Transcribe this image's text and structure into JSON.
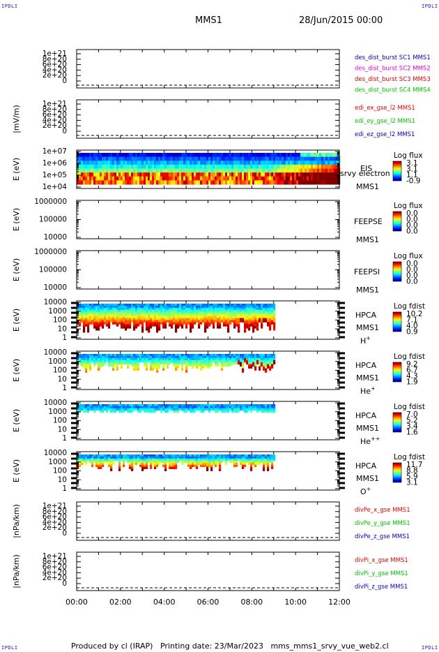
{
  "corner_logo": "IPDLI",
  "header": {
    "title": "MMS1",
    "date": "28/Jun/2015 00:00"
  },
  "footer": {
    "producer": "Produced by cl (IRAP)",
    "printing": "Printing date: 23/Mar/2023",
    "script": "mms_mms1_srvy_vue_web2.cl"
  },
  "time_axis": [
    "00:00",
    "02:00",
    "04:00",
    "06:00",
    "08:00",
    "10:00",
    "12:00"
  ],
  "colors": {
    "red": "#e00000",
    "magenta": "#e000e0",
    "green": "#00c000",
    "blue": "#0000c0",
    "black": "#000000"
  },
  "chart_data": [
    {
      "type": "line",
      "ylabel": "",
      "yticks": [
        "1e+21",
        "8e+20",
        "6e+20",
        "4e+20",
        "2e+20",
        "0"
      ],
      "legend": [
        {
          "text": "des_dist_burst SC1 MMS1",
          "color": "blue"
        },
        {
          "text": "des_dist_burst SC2 MMS2",
          "color": "magenta"
        },
        {
          "text": "des_dist_burst SC3 MMS3",
          "color": "red"
        },
        {
          "text": "des_dist_burst SC4 MMS4",
          "color": "green"
        }
      ]
    },
    {
      "type": "line",
      "ylabel": "|mV/m)",
      "yticks": [
        "1e+21",
        "8e+20",
        "6e+20",
        "4e+20",
        "2e+20",
        "0"
      ],
      "legend": [
        {
          "text": "edi_ex_gse_l2 MMS1",
          "color": "red"
        },
        {
          "text": "edi_ey_gse_l2 MMS1",
          "color": "green"
        },
        {
          "text": "edi_ez_gse_l2 MMS1",
          "color": "blue"
        }
      ]
    },
    {
      "type": "heatmap",
      "ylabel": "E (eV)",
      "log": true,
      "yticks": [
        "1e+07",
        "1e+06",
        "1e+05",
        "1e+04"
      ],
      "labels": [
        "EIS",
        "MMS1"
      ],
      "overlay": "srvy electron to",
      "cbar": {
        "title": "Log flux",
        "values": [
          "3.1",
          "3.1",
          "1.1",
          "-0.9"
        ]
      },
      "hours_end": 12
    },
    {
      "type": "heatmap",
      "ylabel": "E (eV)",
      "log": true,
      "yticks": [
        "1000000",
        "100000",
        "10000"
      ],
      "labels": [
        "FEEPSE",
        "MMS1"
      ],
      "cbar": {
        "title": "Log flux",
        "values": [
          "0.0",
          "0.0",
          "0.0",
          "0.0"
        ]
      },
      "hours_end": 0
    },
    {
      "type": "heatmap",
      "ylabel": "E (eV)",
      "log": true,
      "yticks": [
        "1000000",
        "100000",
        "10000"
      ],
      "labels": [
        "FEEPSI",
        "MMS1"
      ],
      "cbar": {
        "title": "Log flux",
        "values": [
          "0.0",
          "0.0",
          "0.0",
          "0.0"
        ]
      },
      "hours_end": 0
    },
    {
      "type": "heatmap",
      "ylabel": "E (eV)",
      "log": true,
      "yticks": [
        "10000",
        "1000",
        "100",
        "10",
        "1"
      ],
      "labels": [
        "HPCA",
        "MMS1"
      ],
      "species": "H",
      "charge": "+",
      "cbar": {
        "title": "Log fdist",
        "values": [
          "10.2",
          "7.1",
          "4.0",
          "0.9"
        ]
      },
      "hours_end": 9.1
    },
    {
      "type": "heatmap",
      "ylabel": "E (eV)",
      "log": true,
      "yticks": [
        "10000",
        "1000",
        "100",
        "10",
        "1"
      ],
      "labels": [
        "HPCA",
        "MMS1"
      ],
      "species": "He",
      "charge": "+",
      "cbar": {
        "title": "Log fdist",
        "values": [
          "9.2",
          "6.7",
          "4.3",
          "1.9"
        ]
      },
      "hours_end": 9.1
    },
    {
      "type": "heatmap",
      "ylabel": "E (eV)",
      "log": true,
      "yticks": [
        "10000",
        "1000",
        "100",
        "10",
        "1"
      ],
      "labels": [
        "HPCA",
        "MMS1"
      ],
      "species": "He",
      "charge": "++",
      "cbar": {
        "title": "Log fdist",
        "values": [
          "7.0",
          "5.2",
          "3.4",
          "1.6"
        ]
      },
      "hours_end": 9.1
    },
    {
      "type": "heatmap",
      "ylabel": "E (eV)",
      "log": true,
      "yticks": [
        "10000",
        "1000",
        "100",
        "10",
        "1"
      ],
      "labels": [
        "HPCA",
        "MMS1"
      ],
      "species": "O",
      "charge": "+",
      "cbar": {
        "title": "Log fdist",
        "values": [
          "11.7",
          "8.8",
          "5.9",
          "3.1"
        ]
      },
      "hours_end": 9.1
    },
    {
      "type": "line",
      "ylabel": "|nPa/km)",
      "yticks": [
        "1e+21",
        "8e+20",
        "6e+20",
        "4e+20",
        "2e+20",
        "0"
      ],
      "legend": [
        {
          "text": "divPe_x_gse MMS1",
          "color": "red"
        },
        {
          "text": "divPe_y_gse MMS1",
          "color": "green"
        },
        {
          "text": "divPe_z_gse MMS1",
          "color": "blue"
        }
      ]
    },
    {
      "type": "line",
      "ylabel": "|nPa/km)",
      "yticks": [
        "1e+21",
        "8e+20",
        "6e+20",
        "4e+20",
        "2e+20",
        "0"
      ],
      "legend": [
        {
          "text": "divPi_x_gse MMS1",
          "color": "red"
        },
        {
          "text": "divPi_y_gse MMS1",
          "color": "green"
        },
        {
          "text": "divPi_z_gse MMS1",
          "color": "blue"
        }
      ]
    }
  ]
}
